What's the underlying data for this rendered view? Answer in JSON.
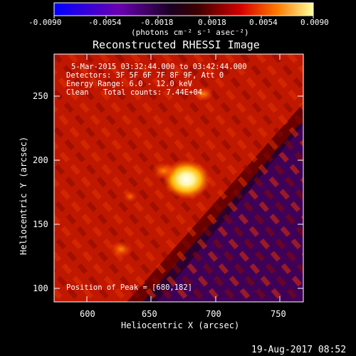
{
  "colorbar": {
    "tick_labels": [
      "-0.0090",
      "-0.0054",
      "-0.0018",
      "0.0018",
      "0.0054",
      "0.0090"
    ],
    "units_label": "(photons cm⁻² s⁻¹ asec⁻²)"
  },
  "plot": {
    "title": "Reconstructed RHESSI Image",
    "xlabel": "Heliocentric X (arcsec)",
    "ylabel": "Heliocentric Y (arcsec)",
    "x_ticks": [
      "600",
      "650",
      "700",
      "750"
    ],
    "y_ticks": [
      "100",
      "150",
      "200",
      "250"
    ],
    "annotations": {
      "time_range": "5-Mar-2015 03:32:44.000 to 03:42:44.000",
      "detectors": "Detectors: 3F 5F 6F 7F 8F 9F, Att 0",
      "energy": "Energy Range: 6.0 - 12.0 keV",
      "algorithm": "Clean",
      "counts": "Total counts: 7.44E+04",
      "peak": "Position of Peak = [680,182]"
    }
  },
  "footer_timestamp": "19-Aug-2017 08:52",
  "chart_data": {
    "type": "heatmap",
    "title": "Reconstructed RHESSI Image",
    "xlabel": "Heliocentric X (arcsec)",
    "ylabel": "Heliocentric Y (arcsec)",
    "xlim": [
      575,
      765
    ],
    "ylim": [
      90,
      283
    ],
    "color_range": [
      -0.009,
      0.009
    ],
    "colorbar_units": "photons cm^-2 s^-1 asec^-2",
    "peak": {
      "x": 680,
      "y": 182
    },
    "colors": [
      "#0000ff",
      "#7a00a0",
      "#150022",
      "#3a0010",
      "#b00000",
      "#ff5500",
      "#ffe000",
      "#ffffff"
    ]
  }
}
